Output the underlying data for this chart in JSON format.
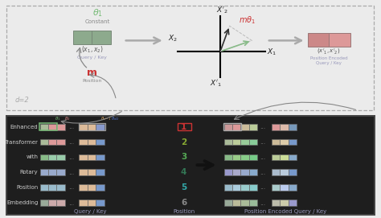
{
  "row_labels": [
    "Enhanced",
    "Transformer",
    "with",
    "Rotary",
    "Position",
    "Embedding"
  ],
  "positions": [
    "1",
    "2",
    "3",
    "4",
    "5",
    "6"
  ],
  "position_colors": [
    "#cc3333",
    "#88aa33",
    "#55aa55",
    "#337755",
    "#33aaaa",
    "#888888"
  ],
  "theta1_color": "#77bb77",
  "theta2_color": "#dd7777",
  "theta_d1_color": "#dd9955",
  "theta_d2_color": "#5577cc",
  "label_m_color": "#cc3333",
  "label_mtheta_color": "#cc3333",
  "title_top_color": "#77bb77",
  "query_key_color": "#9999bb",
  "top_bg": "#f0f0f0",
  "bot_bg": "#1e1e1e",
  "bot_border": "#444444",
  "top_border": "#aaaaaa",
  "left_block_row_colors": [
    [
      "#aabb99",
      "#dd9999",
      "#dd9999",
      "#dd9999"
    ],
    [
      "#aabb99",
      "#dd9999",
      "#dd9999",
      "#dd9999"
    ],
    [
      "#88bb88",
      "#99ccaa",
      "#99ccaa",
      "#99ccaa"
    ],
    [
      "#99aacc",
      "#99aacc",
      "#99aacc",
      "#99aacc"
    ],
    [
      "#99bbcc",
      "#99bbcc",
      "#99bbcc",
      "#99bbcc"
    ],
    [
      "#99aa99",
      "#ccaaaa",
      "#ccaaaa",
      "#ccaaaa"
    ]
  ],
  "right_block_row_colors": [
    [
      "#ddbb99",
      "#ddbb99",
      "#8899cc"
    ],
    [
      "#ddbb99",
      "#ddbb99",
      "#7799cc"
    ],
    [
      "#ddbb99",
      "#ddbb99",
      "#7799cc"
    ],
    [
      "#ddbb99",
      "#ddbb99",
      "#7799cc"
    ],
    [
      "#ddbb99",
      "#ddbb99",
      "#7799cc"
    ],
    [
      "#ddbb99",
      "#ddbb99",
      "#7799cc"
    ]
  ],
  "enc_left_colors": [
    [
      "#cc9999",
      "#dd9999",
      "#ccbb99",
      "#bbcc99"
    ],
    [
      "#aabb99",
      "#bbcc99",
      "#99cc99",
      "#88cc99"
    ],
    [
      "#88bb88",
      "#99cc88",
      "#88cc88",
      "#77cc88"
    ],
    [
      "#9999cc",
      "#aaaacc",
      "#99aacc",
      "#88aacc"
    ],
    [
      "#99bbcc",
      "#aaccdd",
      "#99cccc",
      "#88cccc"
    ],
    [
      "#99aa99",
      "#bbbb99",
      "#aabb99",
      "#99bb99"
    ]
  ],
  "enc_right_colors": [
    [
      "#dd9999",
      "#ddbbaa",
      "#7799bb"
    ],
    [
      "#ccbb99",
      "#ddccaa",
      "#7799cc"
    ],
    [
      "#bbcc99",
      "#ccdd99",
      "#88aacc"
    ],
    [
      "#aabbcc",
      "#bbccdd",
      "#7799cc"
    ],
    [
      "#aacccc",
      "#bbccee",
      "#88aacc"
    ],
    [
      "#bbbbaa",
      "#ccccaa",
      "#9999cc"
    ]
  ]
}
